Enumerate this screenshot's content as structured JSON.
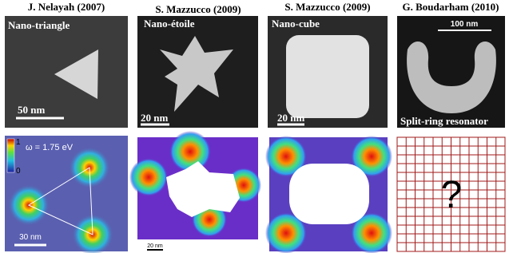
{
  "panels": [
    {
      "author": "J. Nelayah (2007)",
      "label": "Nano-triangle",
      "scale_bar": "50 nm",
      "map_energy": "ω = 1.75 eV",
      "map_scale_bar": "30 nm",
      "colorbar_top": "1",
      "colorbar_bottom": "0"
    },
    {
      "author": "S. Mazzucco (2009)",
      "label": "Nano-étoile",
      "scale_bar": "20 nm",
      "map_scale_bar": "20 nm"
    },
    {
      "author": "S. Mazzucco (2009)",
      "label": "Nano-cube",
      "scale_bar": "20 nm"
    },
    {
      "author": "G. Boudarham (2010)",
      "label": "Split-ring resonator",
      "scale_bar": "100 nm",
      "map_symbol": "?"
    }
  ]
}
